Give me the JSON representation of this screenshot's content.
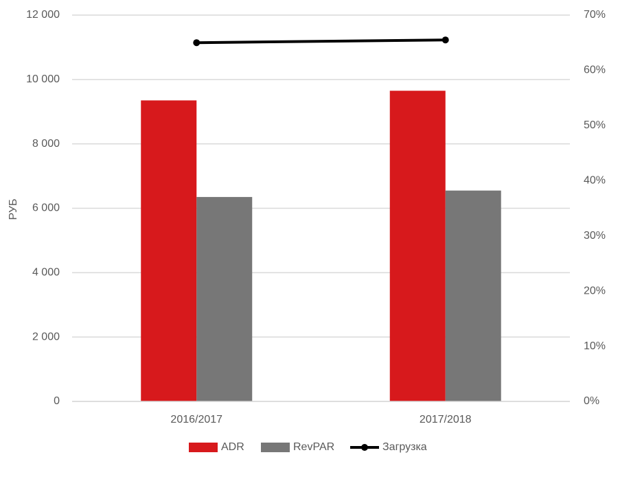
{
  "chart_data": {
    "type": "bar",
    "y_label": "РУБ",
    "categories": [
      "2016/2017",
      "2017/2018"
    ],
    "series": [
      {
        "name": "ADR",
        "type": "bar",
        "color": "#d7191c",
        "values": [
          9350,
          9650
        ]
      },
      {
        "name": "RevPAR",
        "type": "bar",
        "color": "#777777",
        "values": [
          6350,
          6550
        ]
      },
      {
        "name": "Загрузка",
        "type": "line",
        "axis": "y2",
        "color": "#000000",
        "values": [
          65,
          65.5
        ]
      }
    ],
    "ylim": [
      0,
      12000
    ],
    "yticks": [
      0,
      {
        "value": 2000,
        "label": "2 000"
      },
      {
        "value": 4000,
        "label": "4 000"
      },
      {
        "value": 6000,
        "label": "6 000"
      },
      {
        "value": 8000,
        "label": "8 000"
      },
      {
        "value": 10000,
        "label": "10 000"
      },
      {
        "value": 12000,
        "label": "12 000"
      }
    ],
    "y2lim": [
      0,
      70
    ],
    "y2ticks": [
      {
        "value": 0,
        "label": "0%"
      },
      {
        "value": 10,
        "label": "10%"
      },
      {
        "value": 20,
        "label": "20%"
      },
      {
        "value": 30,
        "label": "30%"
      },
      {
        "value": 40,
        "label": "40%"
      },
      {
        "value": 50,
        "label": "50%"
      },
      {
        "value": 60,
        "label": "60%"
      },
      {
        "value": 70,
        "label": "70%"
      }
    ],
    "grid": true,
    "legend": "bottom"
  }
}
